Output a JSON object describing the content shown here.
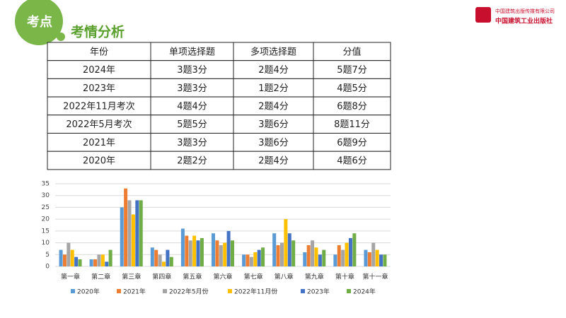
{
  "header": {
    "badge": "考点",
    "title": "考情分析",
    "logo": {
      "line1": "中国建筑出版传媒有限公司",
      "line2": "中国建筑工业出版社"
    }
  },
  "table": {
    "columns": [
      "年份",
      "单项选择题",
      "多项选择题",
      "分值"
    ],
    "rows": [
      [
        "2024年",
        "3题3分",
        "2题4分",
        "5题7分"
      ],
      [
        "2023年",
        "3题3分",
        "1题2分",
        "4题5分"
      ],
      [
        "2022年11月考次",
        "4题4分",
        "2题4分",
        "6题8分"
      ],
      [
        "2022年5月考次",
        "5题5分",
        "3题6分",
        "8题11分"
      ],
      [
        "2021年",
        "3题3分",
        "3题6分",
        "6题9分"
      ],
      [
        "2020年",
        "2题2分",
        "2题4分",
        "4题6分"
      ]
    ]
  },
  "chart_data": {
    "type": "bar",
    "categories": [
      "第一章",
      "第二章",
      "第三章",
      "第四章",
      "第五章",
      "第六章",
      "第七章",
      "第八章",
      "第九章",
      "第十章",
      "第十一章"
    ],
    "series": [
      {
        "name": "2020年",
        "color": "#5b9bd5",
        "values": [
          7,
          3,
          25,
          8,
          16,
          14,
          5,
          14,
          6,
          5,
          7
        ]
      },
      {
        "name": "2021年",
        "color": "#ed7d31",
        "values": [
          5,
          3,
          33,
          7,
          13,
          11,
          5,
          9,
          9,
          9,
          6
        ]
      },
      {
        "name": "2022年5月份",
        "color": "#a5a5a5",
        "values": [
          10,
          5,
          28,
          5,
          11,
          9,
          4,
          10,
          11,
          7,
          10
        ]
      },
      {
        "name": "2022年11月份",
        "color": "#ffc000",
        "values": [
          7,
          5,
          22,
          2,
          13,
          10,
          6,
          20,
          8,
          10,
          7
        ]
      },
      {
        "name": "2023年",
        "color": "#4472c4",
        "values": [
          4,
          2,
          28,
          7,
          11,
          15,
          7,
          14,
          5,
          12,
          5
        ]
      },
      {
        "name": "2024年",
        "color": "#70ad47",
        "values": [
          3,
          7,
          28,
          4,
          12,
          11,
          8,
          11,
          7,
          14,
          5
        ]
      }
    ],
    "ylim": [
      0,
      35
    ],
    "yticks": [
      0,
      5,
      10,
      15,
      20,
      25,
      30,
      35
    ],
    "grid": true
  }
}
